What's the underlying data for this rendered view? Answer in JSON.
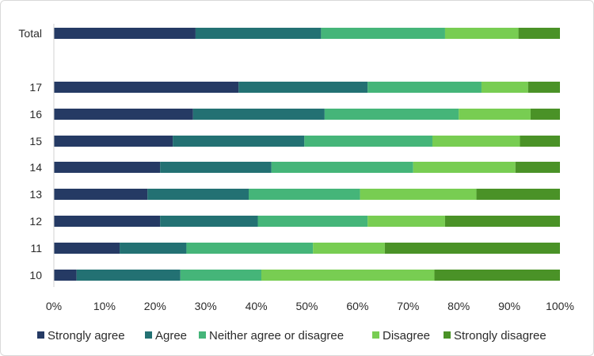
{
  "chart_data": {
    "type": "bar",
    "orientation": "horizontal",
    "stacked": true,
    "title": "",
    "xlabel": "",
    "ylabel": "",
    "categories": [
      "Total",
      "17",
      "16",
      "15",
      "14",
      "13",
      "12",
      "11",
      "10"
    ],
    "x_ticks": [
      "0%",
      "10%",
      "20%",
      "30%",
      "40%",
      "50%",
      "60%",
      "70%",
      "80%",
      "90%",
      "100%"
    ],
    "xlim": [
      0,
      100
    ],
    "legend_position": "bottom",
    "grid": false,
    "series": [
      {
        "name": "Strongly agree",
        "color": "#253a64",
        "values": [
          28,
          36.5,
          27.5,
          23.5,
          21,
          18.5,
          21,
          13,
          4.5
        ]
      },
      {
        "name": "Agree",
        "color": "#237173",
        "values": [
          24.8,
          25.5,
          26,
          26,
          22,
          20,
          19.3,
          13.2,
          20.5
        ]
      },
      {
        "name": "Neither agree or disagree",
        "color": "#45b579",
        "values": [
          24.5,
          22.5,
          26.5,
          25.3,
          28,
          22,
          21.7,
          25,
          16
        ]
      },
      {
        "name": "Disagree",
        "color": "#78cd52",
        "values": [
          14.5,
          9.2,
          14.2,
          17.3,
          20.2,
          23,
          15.3,
          14.2,
          34.2
        ]
      },
      {
        "name": "Strongly disagree",
        "color": "#4a9227",
        "values": [
          8.2,
          6.3,
          5.8,
          7.9,
          8.8,
          16.5,
          22.7,
          34.6,
          24.8
        ]
      }
    ]
  }
}
